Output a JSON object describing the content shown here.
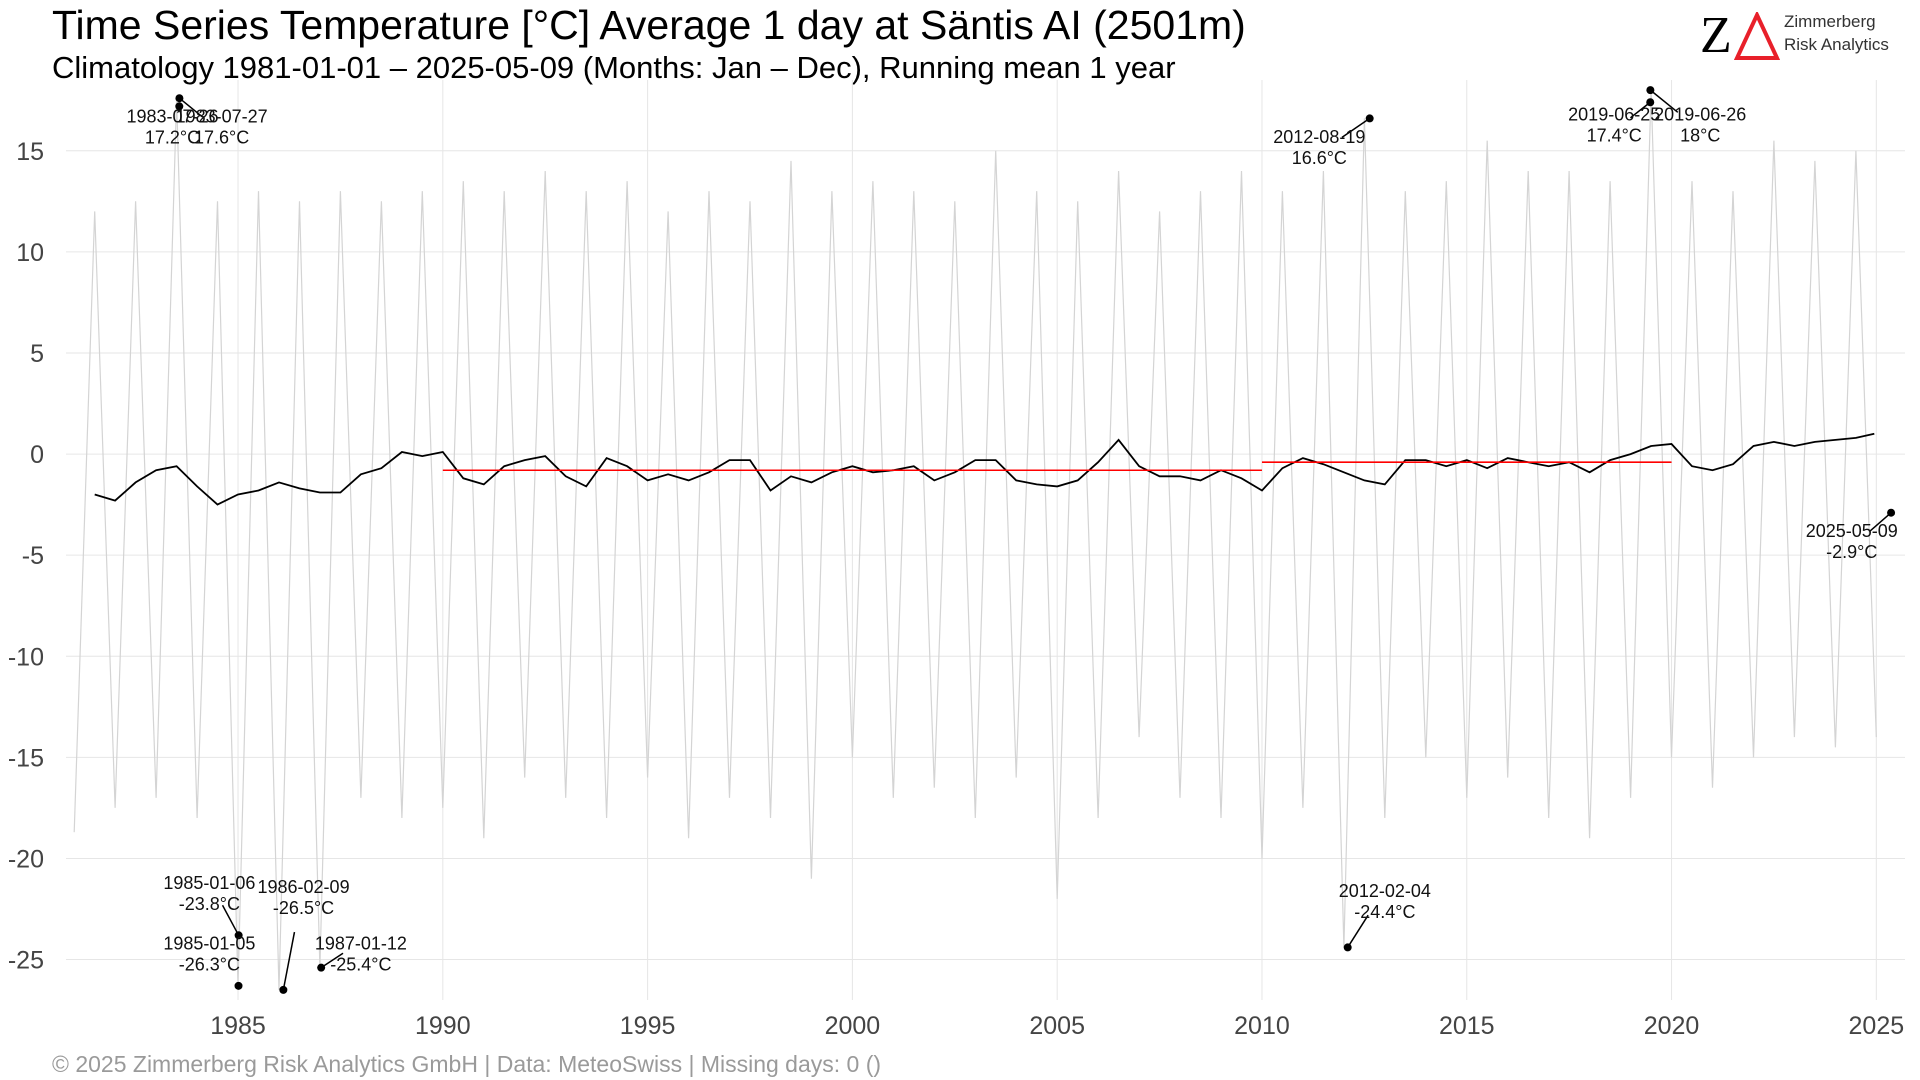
{
  "header": {
    "title": "Time Series Temperature [°C] Average 1 day at Säntis  AI (2501m)",
    "subtitle": "Climatology 1981-01-01 – 2025-05-09 (Months: Jan – Dec), Running mean 1 year"
  },
  "logo": {
    "mark_z": "Z",
    "line1": "Zimmerberg",
    "line2": "Risk Analytics",
    "accent_color": "#e8202a"
  },
  "footer": {
    "text": "©  2025 Zimmerberg Risk Analytics GmbH | Data: MeteoSwiss | Missing days: 0 ()"
  },
  "chart_data": {
    "type": "line",
    "title": "Time Series Temperature [°C] Average 1 day at Säntis  AI (2501m)",
    "xlabel": "",
    "ylabel": "",
    "xlim": [
      1980.8,
      2025.7
    ],
    "ylim": [
      -27,
      18.5
    ],
    "x_ticks": [
      1985,
      1990,
      1995,
      2000,
      2005,
      2010,
      2015,
      2020,
      2025
    ],
    "y_ticks": [
      -25,
      -20,
      -15,
      -10,
      -5,
      0,
      5,
      10,
      15
    ],
    "grid": true,
    "colors": {
      "daily": "#d4d4d4",
      "running_mean": "#000000",
      "period_mean": "#ff0000",
      "grid": "#e6e6e6"
    },
    "series": [
      {
        "role": "running_mean",
        "x": [
          1981.5,
          1982.0,
          1982.5,
          1983.0,
          1983.5,
          1984.0,
          1984.5,
          1985.0,
          1985.5,
          1986.0,
          1986.5,
          1987.0,
          1987.5,
          1988.0,
          1988.5,
          1989.0,
          1989.5,
          1990.0,
          1990.5,
          1991.0,
          1991.5,
          1992.0,
          1992.5,
          1993.0,
          1993.5,
          1994.0,
          1994.5,
          1995.0,
          1995.5,
          1996.0,
          1996.5,
          1997.0,
          1997.5,
          1998.0,
          1998.5,
          1999.0,
          1999.5,
          2000.0,
          2000.5,
          2001.0,
          2001.5,
          2002.0,
          2002.5,
          2003.0,
          2003.5,
          2004.0,
          2004.5,
          2005.0,
          2005.5,
          2006.0,
          2006.5,
          2007.0,
          2007.5,
          2008.0,
          2008.5,
          2009.0,
          2009.5,
          2010.0,
          2010.5,
          2011.0,
          2011.5,
          2012.0,
          2012.5,
          2013.0,
          2013.5,
          2014.0,
          2014.5,
          2015.0,
          2015.5,
          2016.0,
          2016.5,
          2017.0,
          2017.5,
          2018.0,
          2018.5,
          2019.0,
          2019.5,
          2020.0,
          2020.5,
          2021.0,
          2021.5,
          2022.0,
          2022.5,
          2023.0,
          2023.5,
          2024.0,
          2024.5,
          2024.95
        ],
        "values": [
          -2.0,
          -2.3,
          -1.4,
          -0.8,
          -0.6,
          -1.6,
          -2.5,
          -2.0,
          -1.8,
          -1.4,
          -1.7,
          -1.9,
          -1.9,
          -1.0,
          -0.7,
          0.1,
          -0.1,
          0.1,
          -1.2,
          -1.5,
          -0.6,
          -0.3,
          -0.1,
          -1.1,
          -1.6,
          -0.2,
          -0.6,
          -1.3,
          -1.0,
          -1.3,
          -0.9,
          -0.3,
          -0.3,
          -1.8,
          -1.1,
          -1.4,
          -0.9,
          -0.6,
          -0.9,
          -0.8,
          -0.6,
          -1.3,
          -0.9,
          -0.3,
          -0.3,
          -1.3,
          -1.5,
          -1.6,
          -1.3,
          -0.4,
          0.7,
          -0.6,
          -1.1,
          -1.1,
          -1.3,
          -0.8,
          -1.2,
          -1.8,
          -0.7,
          -0.2,
          -0.5,
          -0.9,
          -1.3,
          -1.5,
          -0.3,
          -0.3,
          -0.6,
          -0.3,
          -0.7,
          -0.2,
          -0.4,
          -0.6,
          -0.4,
          -0.9,
          -0.3,
          0.0,
          0.4,
          0.5,
          -0.6,
          -0.8,
          -0.5,
          0.4,
          0.6,
          0.4,
          0.6,
          0.7,
          0.8,
          1.0
        ]
      },
      {
        "role": "period_mean",
        "segments": [
          {
            "x": [
              1990.0,
              2010.0
            ],
            "values": [
              -0.8,
              -0.8
            ]
          },
          {
            "x": [
              2010.0,
              2020.0
            ],
            "values": [
              -0.4,
              -0.4
            ]
          }
        ]
      }
    ],
    "daily_envelope": {
      "role": "daily",
      "x": [
        1981.0,
        1981.5,
        1982.0,
        1982.5,
        1983.0,
        1983.5,
        1984.0,
        1984.5,
        1985.0,
        1985.5,
        1986.0,
        1986.5,
        1987.0,
        1987.5,
        1988.0,
        1988.5,
        1989.0,
        1989.5,
        1990.0,
        1990.5,
        1991.0,
        1991.5,
        1992.0,
        1992.5,
        1993.0,
        1993.5,
        1994.0,
        1994.5,
        1995.0,
        1995.5,
        1996.0,
        1996.5,
        1997.0,
        1997.5,
        1998.0,
        1998.5,
        1999.0,
        1999.5,
        2000.0,
        2000.5,
        2001.0,
        2001.5,
        2002.0,
        2002.5,
        2003.0,
        2003.5,
        2004.0,
        2004.5,
        2005.0,
        2005.5,
        2006.0,
        2006.5,
        2007.0,
        2007.5,
        2008.0,
        2008.5,
        2009.0,
        2009.5,
        2010.0,
        2010.5,
        2011.0,
        2011.5,
        2012.0,
        2012.5,
        2013.0,
        2013.5,
        2014.0,
        2014.5,
        2015.0,
        2015.5,
        2016.0,
        2016.5,
        2017.0,
        2017.5,
        2018.0,
        2018.5,
        2019.0,
        2019.5,
        2020.0,
        2020.5,
        2021.0,
        2021.5,
        2022.0,
        2022.5,
        2023.0,
        2023.5,
        2024.0,
        2024.5,
        2025.0
      ],
      "values": [
        -18.7,
        12.0,
        -17.5,
        12.5,
        -17.0,
        17.6,
        -18.0,
        12.5,
        -26.3,
        13.0,
        -26.5,
        12.5,
        -25.4,
        13.0,
        -17.0,
        12.5,
        -18.0,
        13.0,
        -17.5,
        13.5,
        -19.0,
        13.0,
        -16.0,
        14.0,
        -17.0,
        13.0,
        -18.0,
        13.5,
        -16.0,
        12.0,
        -19.0,
        13.0,
        -17.0,
        12.5,
        -18.0,
        14.5,
        -21.0,
        13.0,
        -15.0,
        13.5,
        -17.0,
        13.0,
        -16.5,
        12.5,
        -18.0,
        15.0,
        -16.0,
        13.0,
        -22.0,
        12.5,
        -18.0,
        14.0,
        -14.0,
        12.0,
        -17.0,
        13.0,
        -18.0,
        14.0,
        -20.0,
        13.0,
        -17.5,
        14.0,
        -24.4,
        16.6,
        -18.0,
        13.0,
        -15.0,
        13.5,
        -17.0,
        15.5,
        -16.0,
        14.0,
        -18.0,
        14.0,
        -19.0,
        13.5,
        -17.0,
        18.0,
        -15.0,
        13.5,
        -16.5,
        13.0,
        -15.0,
        15.5,
        -14.0,
        14.5,
        -14.5,
        15.0,
        -14.0
      ]
    },
    "annotations": [
      {
        "date": "1983-07-26",
        "value": "17.2°C",
        "x": 1983.566,
        "y": 17.2,
        "label_x": 1983.4,
        "label_y": 15.9
      },
      {
        "date": "1983-07-27",
        "value": "17.6°C",
        "x": 1983.569,
        "y": 17.6,
        "label_x": 1984.6,
        "label_y": 15.9
      },
      {
        "date": "1985-01-06",
        "value": "-23.8°C",
        "x": 1985.015,
        "y": -23.8,
        "label_x": 1984.3,
        "label_y": -22.0
      },
      {
        "date": "1985-01-05",
        "value": "-26.3°C",
        "x": 1985.012,
        "y": -26.3,
        "label_x": 1984.3,
        "label_y": -25.0
      },
      {
        "date": "1986-02-09",
        "value": "-26.5°C",
        "x": 1986.107,
        "y": -26.5,
        "label_x": 1986.6,
        "label_y": -22.2
      },
      {
        "date": "1987-01-12",
        "value": "-25.4°C",
        "x": 1987.03,
        "y": -25.4,
        "label_x": 1988.0,
        "label_y": -25.0
      },
      {
        "date": "2012-08-19",
        "value": "16.6°C",
        "x": 2012.63,
        "y": 16.6,
        "label_x": 2011.4,
        "label_y": 14.9
      },
      {
        "date": "2012-02-04",
        "value": "-24.4°C",
        "x": 2012.093,
        "y": -24.4,
        "label_x": 2013.0,
        "label_y": -22.4
      },
      {
        "date": "2019-06-25",
        "value": "17.4°C",
        "x": 2019.48,
        "y": 17.4,
        "label_x": 2018.6,
        "label_y": 16.0
      },
      {
        "date": "2019-06-26",
        "value": "18°C",
        "x": 2019.483,
        "y": 18.0,
        "label_x": 2020.7,
        "label_y": 16.0
      },
      {
        "date": "2025-05-09",
        "value": "-2.9°C",
        "x": 2025.36,
        "y": -2.9,
        "label_x": 2024.4,
        "label_y": -4.6
      }
    ]
  }
}
